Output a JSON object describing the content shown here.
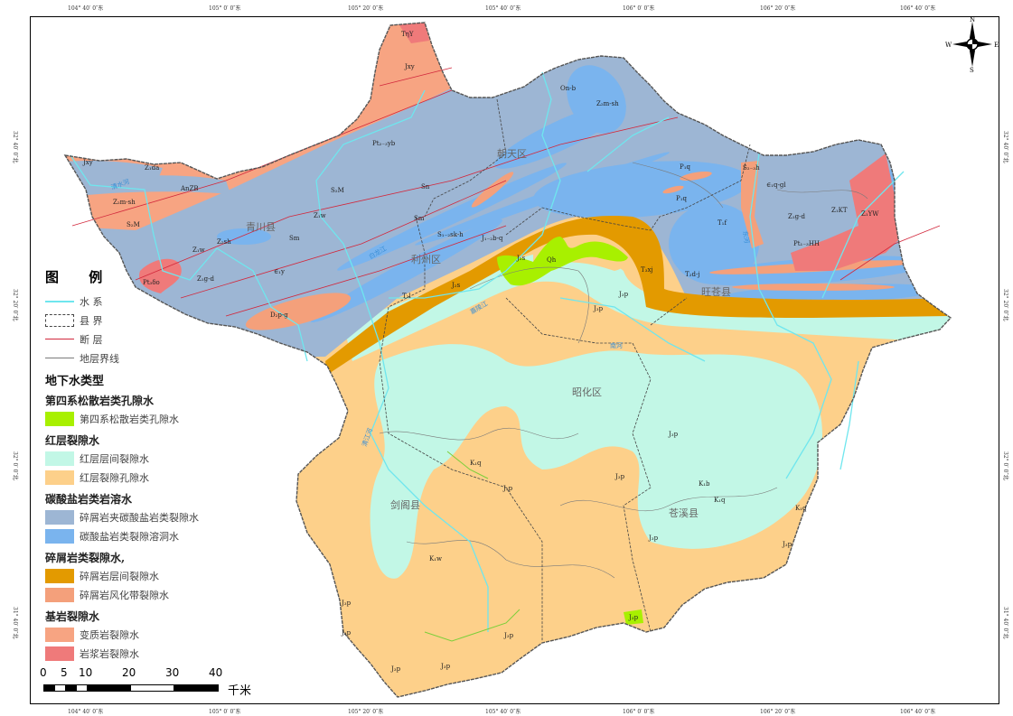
{
  "colors": {
    "quaternary": "#a8f000",
    "redbed_interlayer": "#c2f7e6",
    "redbed_pore": "#fdd08a",
    "clastic_carbonate": "#9db6d4",
    "carbonate_karst": "#7ab4ee",
    "clastic_interlayer": "#e39a00",
    "clastic_weathered": "#f4a07b",
    "metamorphic": "#f7a482",
    "magmatic": "#ef7a7a",
    "river": "#6fe6ee",
    "fault": "#d2283c",
    "stratum_line": "#7a7a7a",
    "county_border": "#444444"
  },
  "coords": {
    "top": [
      "104° 40′ 0″东",
      "105° 0′ 0″东",
      "105° 20′ 0″东",
      "105° 40′ 0″东",
      "106° 0′ 0″东",
      "106° 20′ 0″东",
      "106° 40′ 0″东"
    ],
    "left": [
      "32° 40′ 0″北",
      "32° 20′ 0″北",
      "32° 0′ 0″北",
      "31° 40′ 0″北"
    ]
  },
  "compass": {
    "n": "N",
    "s": "S",
    "e": "E",
    "w": "W"
  },
  "counties": [
    "青川县",
    "朝天区",
    "利州区",
    "昭化区",
    "旺苍县",
    "剑阁县",
    "苍溪县"
  ],
  "strata": [
    "TηY",
    "Jxy",
    "Pt₂₋₃yb",
    "Jxy",
    "Z₁da",
    "AnZB",
    "Z₂m-sh",
    "S₂M",
    "S₂M",
    "Z₁w",
    "Z₂sh",
    "Sm",
    "Sm",
    "Sn",
    "Z₁w",
    "Pt₃δο",
    "Z₁g-d",
    "∈₁y",
    "D₂p-g",
    "S₁₋₂sk-h",
    "J₁₋₂b-q",
    "T₂l",
    "J₂s",
    "J₂s",
    "Qh",
    "On-b",
    "Z₂m-sh",
    "P₁q",
    "P₁q",
    "S₂₋₃h",
    "∈₁q-gl",
    "Z₁g-d",
    "Z₁KT",
    "Z₁YW",
    "Pt₁₋₃HH",
    "T₁f",
    "T₃xj",
    "T₂d-j",
    "J₃p",
    "J₃p",
    "J₃p",
    "K₁q",
    "J₃p",
    "J₃p",
    "K₁b",
    "K₁q",
    "K₁q",
    "J₃p",
    "K₁w",
    "J₃p",
    "J₃p",
    "J₃p",
    "J₃p",
    "J₃p",
    "J₃p"
  ],
  "rivers": [
    "清水河",
    "白龙江",
    "嘉陵江",
    "南河",
    "东河",
    "清江河"
  ],
  "legend": {
    "title": "图 例",
    "lines": [
      {
        "label": "水  系"
      },
      {
        "label": "县  界"
      },
      {
        "label": "断  层"
      },
      {
        "label": "地层界线"
      }
    ],
    "section": "地下水类型",
    "groups": [
      {
        "title": "第四系松散岩类孔隙水",
        "items": [
          {
            "label": "第四系松散岩类孔隙水",
            "color": "#a8f000"
          }
        ]
      },
      {
        "title": "红层裂隙水",
        "items": [
          {
            "label": "红层层间裂隙水",
            "color": "#c2f7e6"
          },
          {
            "label": "红层裂隙孔隙水",
            "color": "#fdd08a"
          }
        ]
      },
      {
        "title": "碳酸盐岩类岩溶水",
        "items": [
          {
            "label": "碎屑岩夹碳酸盐岩类裂隙水",
            "color": "#9db6d4"
          },
          {
            "label": "碳酸盐岩类裂隙溶洞水",
            "color": "#7ab4ee"
          }
        ]
      },
      {
        "title": "碎屑岩类裂隙水,",
        "items": [
          {
            "label": "碎屑岩层间裂隙水",
            "color": "#e39a00"
          },
          {
            "label": "碎屑岩风化带裂隙水",
            "color": "#f4a07b"
          }
        ]
      },
      {
        "title": "基岩裂隙水",
        "items": [
          {
            "label": "变质岩裂隙水",
            "color": "#f7a482"
          },
          {
            "label": "岩浆岩裂隙水",
            "color": "#ef7a7a"
          }
        ]
      }
    ]
  },
  "scale": {
    "ticks": [
      "0",
      "5",
      "10",
      "20",
      "30",
      "40"
    ],
    "unit": "千米"
  }
}
